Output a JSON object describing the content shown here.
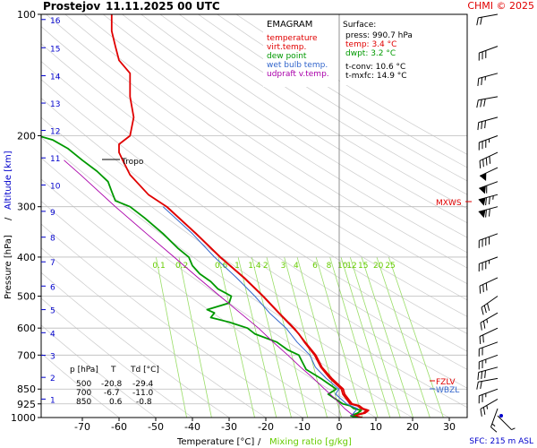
{
  "header": {
    "station": "Prostejov",
    "datetime": "11.11.2025 00 UTC",
    "credit": "CHMI © 2025"
  },
  "legend": {
    "title": "EMAGRAM",
    "items": [
      {
        "label": "temperature",
        "color": "#e00000"
      },
      {
        "label": "virt.temp.",
        "color": "#e00000"
      },
      {
        "label": "dew point",
        "color": "#009900"
      },
      {
        "label": "wet bulb temp.",
        "color": "#3366cc"
      },
      {
        "label": "udpraft v.temp.",
        "color": "#aa00aa"
      }
    ]
  },
  "surface": {
    "title": "Surface:",
    "press": "press: 990.7 hPa",
    "temp": "temp: 3.4 °C",
    "dwpt": "dwpt: 3.2 °C",
    "tconv": "t-conv: 10.6 °C",
    "tmxfc": "t-mxfc: 14.9 °C"
  },
  "table": {
    "header": [
      "p [hPa]",
      "T",
      "Td [°C]"
    ],
    "rows": [
      [
        "500",
        "-20.8",
        "-29.4"
      ],
      [
        "700",
        "-6.7",
        "-11.0"
      ],
      [
        "850",
        "0.6",
        "-0.8"
      ]
    ]
  },
  "annotations": {
    "tropo": "Tropo",
    "mxws": "MXWS",
    "fzlv": "FZLV",
    "wbzl": "WBZL",
    "sfc": "SFC: 215 m ASL"
  },
  "chart_data": {
    "type": "line",
    "title": "Prostejov 11.11.2025 00 UTC",
    "xlabel": "Temperature [°C]",
    "xlabel2": "Mixing ratio [g/kg]",
    "ylabel": "Pressure [hPa]",
    "ylabel2": "Altitude [km]",
    "xlim": [
      -80,
      35
    ],
    "ylim": [
      1000,
      100
    ],
    "y_scale": "log",
    "x_ticks": [
      -70,
      -60,
      -50,
      -40,
      -30,
      -20,
      -10,
      0,
      10,
      20,
      30
    ],
    "p_ticks": [
      100,
      200,
      300,
      400,
      500,
      600,
      700,
      850,
      925,
      1000
    ],
    "alt_ticks": [
      {
        "label": "1",
        "p": 900
      },
      {
        "label": "2",
        "p": 795
      },
      {
        "label": "3",
        "p": 701
      },
      {
        "label": "4",
        "p": 616
      },
      {
        "label": "5",
        "p": 540
      },
      {
        "label": "6",
        "p": 472
      },
      {
        "label": "7",
        "p": 411
      },
      {
        "label": "8",
        "p": 357
      },
      {
        "label": "9",
        "p": 308
      },
      {
        "label": "10",
        "p": 265
      },
      {
        "label": "11",
        "p": 227
      },
      {
        "label": "12",
        "p": 194
      },
      {
        "label": "13",
        "p": 166
      },
      {
        "label": "14",
        "p": 142
      },
      {
        "label": "15",
        "p": 121
      },
      {
        "label": "16",
        "p": 103
      }
    ],
    "mixing_ratio_labels": [
      "0.1",
      "0.2",
      "0.6",
      "1",
      "1.4",
      "2",
      "3",
      "4",
      "6",
      "8",
      "10",
      "12",
      "15",
      "20",
      "25"
    ],
    "series": [
      {
        "name": "temperature",
        "color": "#e00000",
        "points": [
          [
            1000,
            6
          ],
          [
            990,
            3.4
          ],
          [
            975,
            6.5
          ],
          [
            960,
            7.5
          ],
          [
            950,
            6
          ],
          [
            935,
            5
          ],
          [
            925,
            3
          ],
          [
            900,
            2
          ],
          [
            875,
            1
          ],
          [
            850,
            0.6
          ],
          [
            800,
            -2.5
          ],
          [
            750,
            -5
          ],
          [
            700,
            -6.7
          ],
          [
            650,
            -9.5
          ],
          [
            620,
            -11
          ],
          [
            600,
            -12.5
          ],
          [
            550,
            -16.5
          ],
          [
            500,
            -20.8
          ],
          [
            450,
            -26
          ],
          [
            400,
            -32.5
          ],
          [
            350,
            -39
          ],
          [
            300,
            -47
          ],
          [
            280,
            -52
          ],
          [
            250,
            -57
          ],
          [
            230,
            -59
          ],
          [
            220,
            -60
          ],
          [
            210,
            -60
          ],
          [
            200,
            -57
          ],
          [
            180,
            -56
          ],
          [
            160,
            -57
          ],
          [
            140,
            -57
          ],
          [
            130,
            -60
          ],
          [
            120,
            -61
          ],
          [
            110,
            -62
          ],
          [
            100,
            -62
          ]
        ]
      },
      {
        "name": "virt.temp.",
        "color": "#e00000",
        "points": [
          [
            1000,
            6.3
          ],
          [
            990,
            3.9
          ],
          [
            975,
            7
          ],
          [
            960,
            8
          ],
          [
            950,
            6.5
          ],
          [
            935,
            5.5
          ],
          [
            925,
            3.5
          ],
          [
            900,
            2.5
          ],
          [
            875,
            1.5
          ],
          [
            850,
            1.1
          ],
          [
            800,
            -2
          ],
          [
            750,
            -4.7
          ],
          [
            700,
            -6.4
          ],
          [
            650,
            -9.3
          ],
          [
            600,
            -12.3
          ],
          [
            550,
            -16.4
          ],
          [
            500,
            -20.7
          ],
          [
            450,
            -25.9
          ],
          [
            400,
            -32.4
          ],
          [
            350,
            -39
          ],
          [
            300,
            -47
          ]
        ]
      },
      {
        "name": "dew point",
        "color": "#009900",
        "points": [
          [
            1000,
            5
          ],
          [
            990,
            3.2
          ],
          [
            975,
            5
          ],
          [
            960,
            6
          ],
          [
            950,
            4
          ],
          [
            935,
            3
          ],
          [
            925,
            1
          ],
          [
            900,
            -1
          ],
          [
            875,
            -3
          ],
          [
            850,
            -0.8
          ],
          [
            800,
            -5
          ],
          [
            760,
            -9
          ],
          [
            730,
            -10
          ],
          [
            700,
            -11
          ],
          [
            680,
            -14
          ],
          [
            650,
            -17
          ],
          [
            620,
            -23
          ],
          [
            600,
            -25
          ],
          [
            580,
            -30
          ],
          [
            565,
            -35
          ],
          [
            550,
            -34
          ],
          [
            540,
            -36
          ],
          [
            520,
            -30
          ],
          [
            500,
            -29.4
          ],
          [
            480,
            -33
          ],
          [
            460,
            -35
          ],
          [
            440,
            -38
          ],
          [
            420,
            -40
          ],
          [
            400,
            -41
          ],
          [
            380,
            -44
          ],
          [
            350,
            -48
          ],
          [
            320,
            -53
          ],
          [
            300,
            -57
          ],
          [
            290,
            -61
          ],
          [
            275,
            -62
          ],
          [
            260,
            -63
          ],
          [
            245,
            -66
          ],
          [
            230,
            -70
          ],
          [
            215,
            -74
          ],
          [
            205,
            -78
          ],
          [
            200,
            -82
          ],
          [
            190,
            -85
          ],
          [
            180,
            -88
          ]
        ]
      },
      {
        "name": "wet bulb temp.",
        "color": "#3366cc",
        "points": [
          [
            990,
            3.3
          ],
          [
            950,
            5
          ],
          [
            925,
            2
          ],
          [
            900,
            0.5
          ],
          [
            875,
            -1
          ],
          [
            850,
            -0.1
          ],
          [
            800,
            -3.5
          ],
          [
            750,
            -6.5
          ],
          [
            700,
            -8
          ],
          [
            650,
            -11.5
          ],
          [
            600,
            -14.5
          ],
          [
            550,
            -19
          ],
          [
            500,
            -23
          ],
          [
            450,
            -28
          ],
          [
            400,
            -34
          ],
          [
            350,
            -40
          ],
          [
            300,
            -48
          ]
        ]
      },
      {
        "name": "udpraft v.temp.",
        "color": "#aa00aa",
        "points": [
          [
            990,
            3.9
          ],
          [
            950,
            1.5
          ],
          [
            900,
            -1
          ],
          [
            850,
            -4
          ],
          [
            800,
            -7
          ],
          [
            750,
            -10.5
          ],
          [
            700,
            -14
          ],
          [
            650,
            -18
          ],
          [
            600,
            -22
          ],
          [
            550,
            -27
          ],
          [
            500,
            -32.5
          ],
          [
            450,
            -38.5
          ],
          [
            400,
            -45
          ],
          [
            350,
            -52.5
          ],
          [
            300,
            -61
          ],
          [
            250,
            -70.5
          ],
          [
            230,
            -75
          ]
        ]
      }
    ]
  },
  "wind_barbs": [
    {
      "p": 990,
      "dir": 135,
      "spd": 5
    },
    {
      "p": 950,
      "dir": 200,
      "spd": 15
    },
    {
      "p": 900,
      "dir": 240,
      "spd": 25
    },
    {
      "p": 850,
      "dir": 250,
      "spd": 25
    },
    {
      "p": 800,
      "dir": 260,
      "spd": 20
    },
    {
      "p": 750,
      "dir": 255,
      "spd": 30
    },
    {
      "p": 700,
      "dir": 250,
      "spd": 25
    },
    {
      "p": 650,
      "dir": 250,
      "spd": 20
    },
    {
      "p": 600,
      "dir": 245,
      "spd": 20
    },
    {
      "p": 550,
      "dir": 240,
      "spd": 25
    },
    {
      "p": 500,
      "dir": 235,
      "spd": 30
    },
    {
      "p": 450,
      "dir": 245,
      "spd": 30
    },
    {
      "p": 400,
      "dir": 250,
      "spd": 35
    },
    {
      "p": 350,
      "dir": 250,
      "spd": 40
    },
    {
      "p": 300,
      "dir": 255,
      "spd": 70
    },
    {
      "p": 280,
      "dir": 255,
      "spd": 75
    },
    {
      "p": 260,
      "dir": 250,
      "spd": 60
    },
    {
      "p": 240,
      "dir": 245,
      "spd": 50
    },
    {
      "p": 220,
      "dir": 245,
      "spd": 40
    },
    {
      "p": 200,
      "dir": 250,
      "spd": 35
    },
    {
      "p": 180,
      "dir": 255,
      "spd": 30
    },
    {
      "p": 160,
      "dir": 260,
      "spd": 30
    },
    {
      "p": 140,
      "dir": 255,
      "spd": 25
    },
    {
      "p": 120,
      "dir": 250,
      "spd": 30
    },
    {
      "p": 100,
      "dir": 260,
      "spd": 20
    }
  ],
  "colors": {
    "grid": "#bbbbbb",
    "mixing": "#99dd66",
    "mixing_text": "#66cc00",
    "axis_blue": "#0000cc",
    "accent_red": "#e00000"
  }
}
